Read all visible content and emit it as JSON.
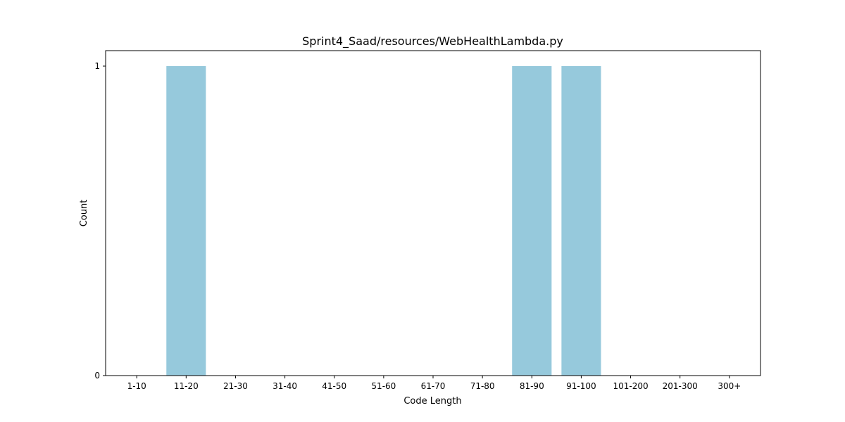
{
  "chart_data": {
    "type": "bar",
    "title": "Sprint4_Saad/resources/WebHealthLambda.py",
    "xlabel": "Code Length",
    "ylabel": "Count",
    "categories": [
      "1-10",
      "11-20",
      "21-30",
      "31-40",
      "41-50",
      "51-60",
      "61-70",
      "71-80",
      "81-90",
      "91-100",
      "101-200",
      "201-300",
      "300+"
    ],
    "values": [
      0,
      1,
      0,
      0,
      0,
      0,
      0,
      0,
      1,
      1,
      0,
      0,
      0
    ],
    "ylim": [
      0,
      1.05
    ],
    "yticks": [
      "0",
      "1"
    ],
    "bar_color": "#96c9dc",
    "grid": false,
    "legend": "none"
  }
}
